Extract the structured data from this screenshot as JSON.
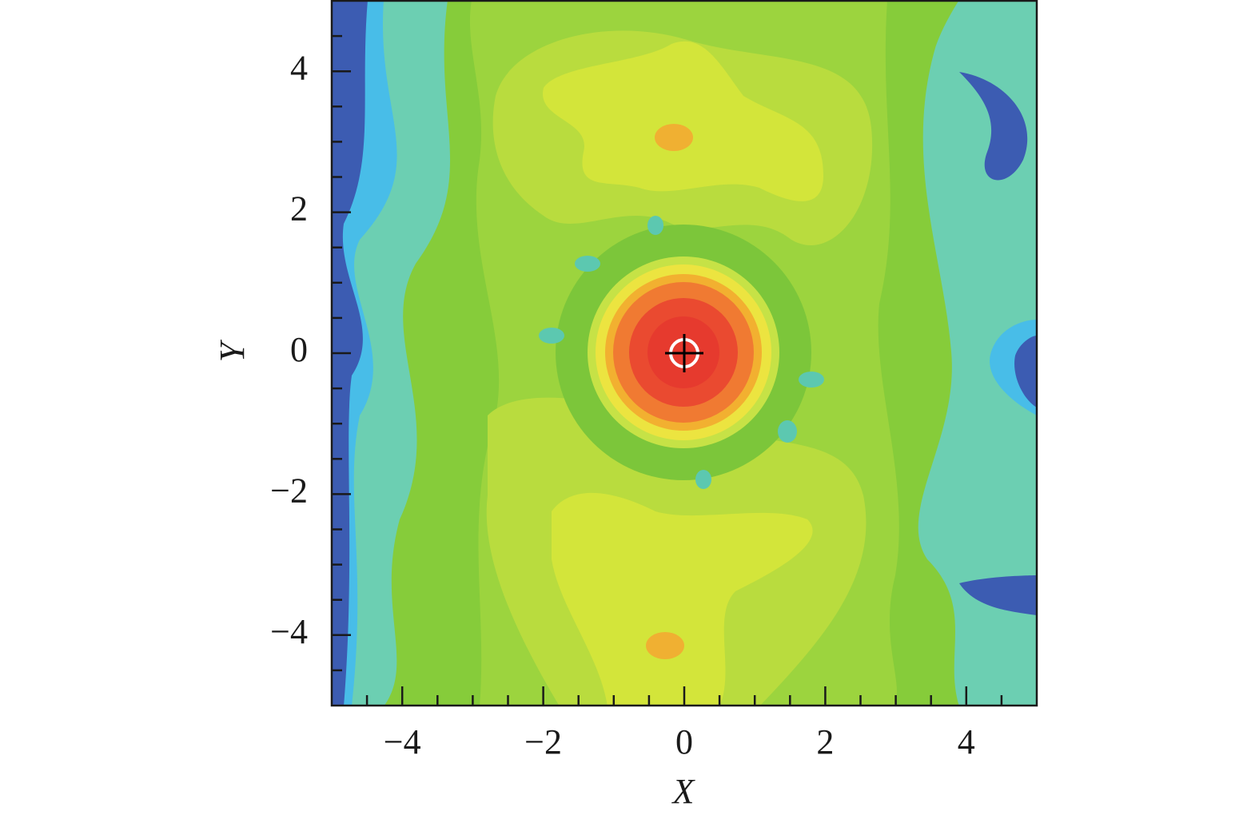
{
  "chart_data": {
    "type": "contour",
    "xlabel": "X",
    "ylabel": "Y",
    "xlim": [
      -5,
      5
    ],
    "ylim": [
      -5,
      5
    ],
    "xticks": [
      {
        "value": -4,
        "label": "−4"
      },
      {
        "value": -2,
        "label": "−2"
      },
      0,
      2,
      4
    ],
    "yticks": [
      {
        "value": -4,
        "label": "−4"
      },
      {
        "value": -2,
        "label": "−2"
      },
      0,
      2,
      4
    ],
    "xminorticks": [
      -4.5,
      -3.5,
      -3,
      -2.5,
      -1.5,
      -1,
      -0.5,
      0.5,
      1,
      1.5,
      2.5,
      3,
      3.5,
      4.5
    ],
    "yminorticks": [
      -4.5,
      -3.5,
      -3,
      -2.5,
      -1.5,
      -1,
      -0.5,
      0.5,
      1,
      1.5,
      2.5,
      3,
      3.5,
      4.5
    ],
    "marker": {
      "x": 0,
      "y": 0
    }
  }
}
